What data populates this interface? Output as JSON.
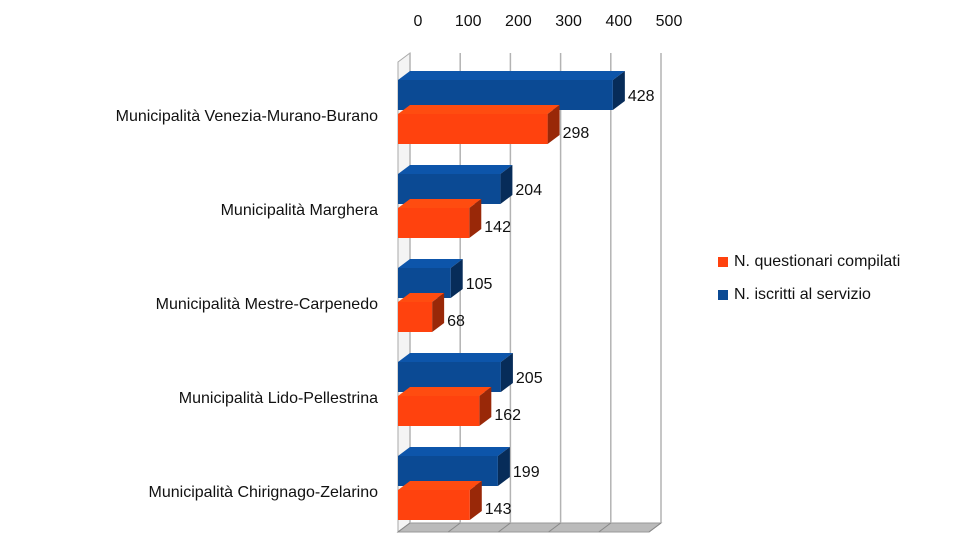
{
  "chart_data": {
    "type": "bar3d_horizontal",
    "categories": [
      "Municipalità Venezia-Murano-Burano",
      "Municipalità Marghera",
      "Municipalità Mestre-Carpenedo",
      "Municipalità Lido-Pellestrina",
      "Municipalità Chirignago-Zelarino"
    ],
    "series": [
      {
        "name": "N. iscritti al servizio",
        "color": "#0b4a94",
        "values": [
          428,
          204,
          105,
          205,
          199
        ]
      },
      {
        "name": "N. questionari compilati",
        "color": "#ff420e",
        "values": [
          298,
          142,
          68,
          162,
          143
        ]
      }
    ],
    "xlim": [
      0,
      500
    ],
    "xticks": [
      0,
      100,
      200,
      300,
      400,
      500
    ],
    "grid": true,
    "legend": "right"
  }
}
